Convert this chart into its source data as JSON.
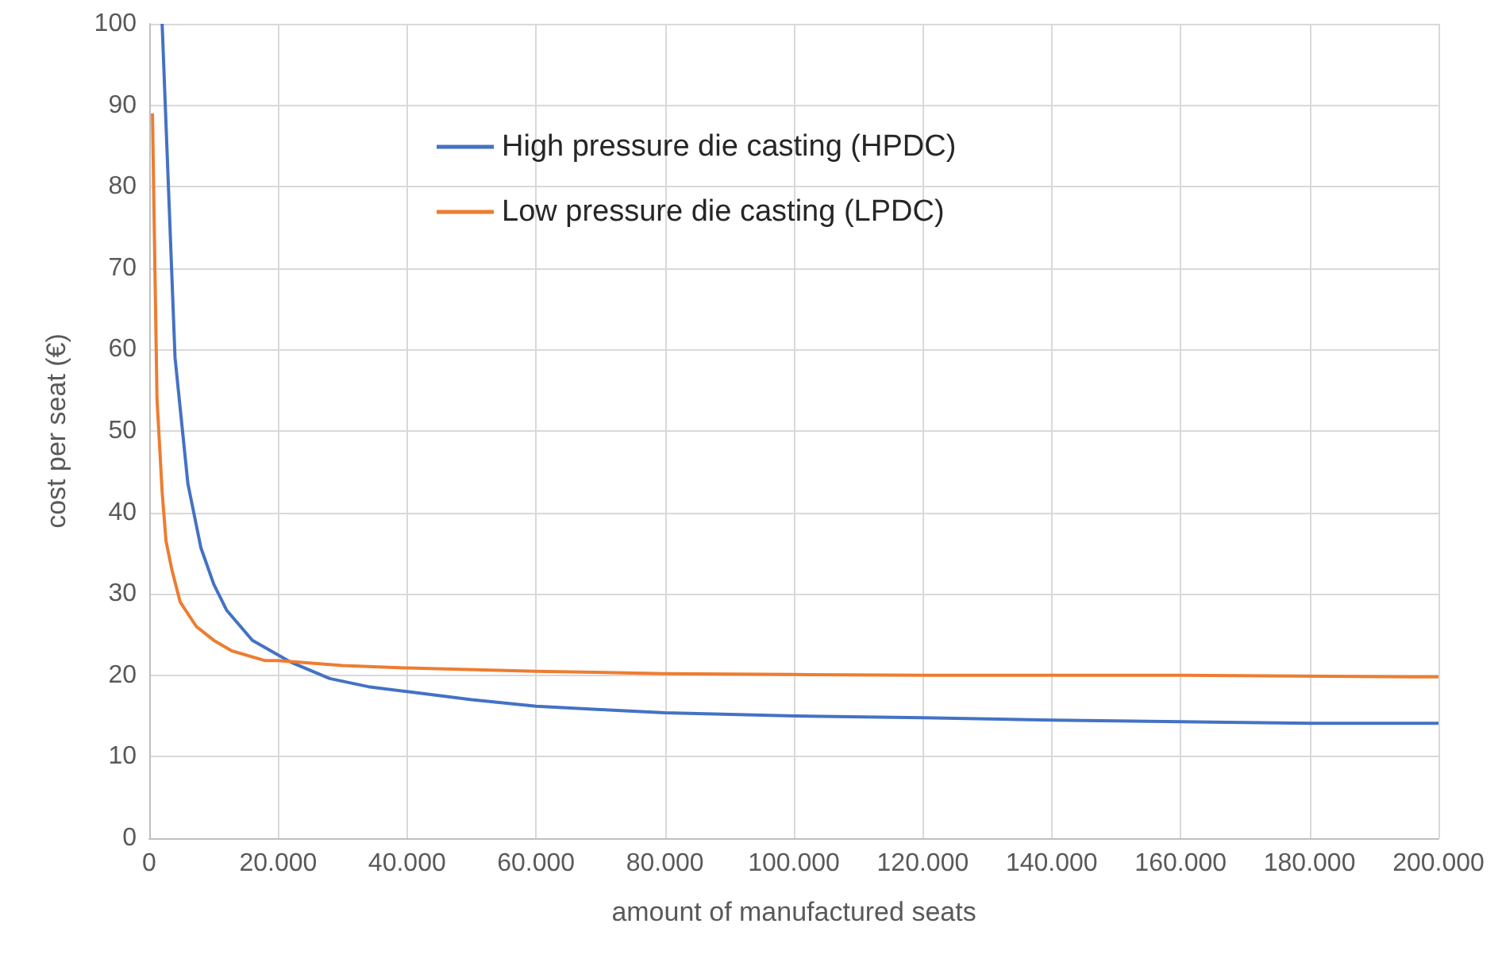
{
  "chart_data": {
    "type": "line",
    "xlabel": "amount of manufactured seats",
    "ylabel": "cost per seat (€)",
    "xlim": [
      0,
      200000
    ],
    "xticks": [
      0,
      {
        "value": 20000,
        "label": "20.000"
      },
      {
        "value": 40000,
        "label": "40.000"
      },
      {
        "value": 60000,
        "label": "60.000"
      },
      {
        "value": 80000,
        "label": "80.000"
      },
      {
        "value": 100000,
        "label": "100.000"
      },
      {
        "value": 120000,
        "label": "120.000"
      },
      {
        "value": 140000,
        "label": "140.000"
      },
      {
        "value": 160000,
        "label": "160.000"
      },
      {
        "value": 180000,
        "label": "180.000"
      },
      {
        "value": 200000,
        "label": "200.000"
      }
    ],
    "ylim": [
      0,
      100
    ],
    "yticks": [
      0,
      10,
      20,
      30,
      40,
      50,
      60,
      70,
      80,
      90,
      100
    ],
    "grid": true,
    "legend": "top",
    "marker": "none",
    "line_style": "solid",
    "series": [
      {
        "name": "High pressure die casting (HPDC)",
        "color": "#4472c4",
        "x": [
          2000,
          4000,
          6000,
          8000,
          10000,
          12000,
          16000,
          20000,
          22000,
          28000,
          34000,
          40000,
          50000,
          60000,
          70000,
          80000,
          90000,
          100000,
          120000,
          140000,
          160000,
          180000,
          200000
        ],
        "values": [
          100,
          59,
          43.5,
          35.7,
          31.2,
          28,
          24.3,
          22.5,
          21.6,
          19.6,
          18.6,
          18,
          17,
          16.2,
          15.8,
          15.4,
          15.2,
          15,
          14.8,
          14.5,
          14.3,
          14.1,
          14.1
        ]
      },
      {
        "name": "Low pressure die casting (LPDC)",
        "color": "#ed7d31",
        "x": [
          500,
          1200,
          2000,
          2600,
          3500,
          4800,
          7300,
          10000,
          12800,
          18000,
          20000,
          30000,
          40000,
          60000,
          80000,
          100000,
          120000,
          160000,
          200000
        ],
        "values": [
          89,
          54,
          42.5,
          36.5,
          33,
          29,
          26,
          24.3,
          23,
          21.8,
          21.8,
          21.2,
          20.9,
          20.5,
          20.2,
          20.1,
          20,
          20,
          19.8
        ]
      }
    ]
  }
}
